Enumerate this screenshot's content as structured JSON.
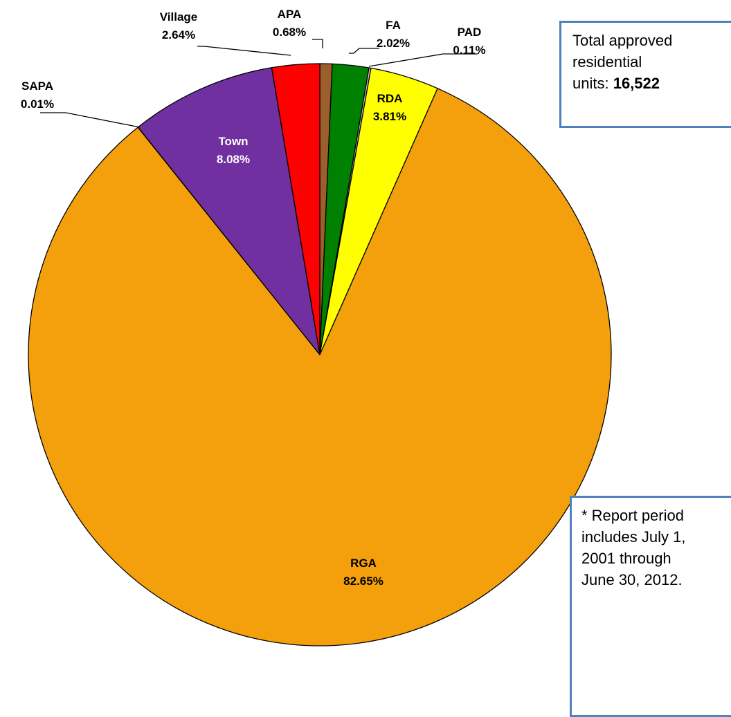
{
  "chart_data": {
    "type": "pie",
    "slices": [
      {
        "name": "APA",
        "value": 0.68,
        "pct_label": "0.68%",
        "color": "#9c5f2c",
        "text_color": "#000000"
      },
      {
        "name": "FA",
        "value": 2.02,
        "pct_label": "2.02%",
        "color": "#008000",
        "text_color": "#000000"
      },
      {
        "name": "PAD",
        "value": 0.11,
        "pct_label": "0.11%",
        "color": "#c8c8c8",
        "text_color": "#000000"
      },
      {
        "name": "RDA",
        "value": 3.81,
        "pct_label": "3.81%",
        "color": "#ffff00",
        "text_color": "#000000"
      },
      {
        "name": "RGA",
        "value": 82.65,
        "pct_label": "82.65%",
        "color": "#f4a00c",
        "text_color": "#000000"
      },
      {
        "name": "SAPA",
        "value": 0.01,
        "pct_label": "0.01%",
        "color": "#888888",
        "text_color": "#000000"
      },
      {
        "name": "Town",
        "value": 8.08,
        "pct_label": "8.08%",
        "color": "#7030a0",
        "text_color": "#ffffff"
      },
      {
        "name": "Village",
        "value": 2.64,
        "pct_label": "2.64%",
        "color": "#ff0000",
        "text_color": "#000000"
      }
    ],
    "order": "clockwise from top"
  },
  "total_box": {
    "line1": "Total approved",
    "line2": "residential",
    "line3_prefix": "units: ",
    "line3_value": "16,522"
  },
  "note_box": {
    "line1": "* Report period",
    "line2": "includes July 1,",
    "line3": "2001 through",
    "line4": "June 30, 2012."
  }
}
